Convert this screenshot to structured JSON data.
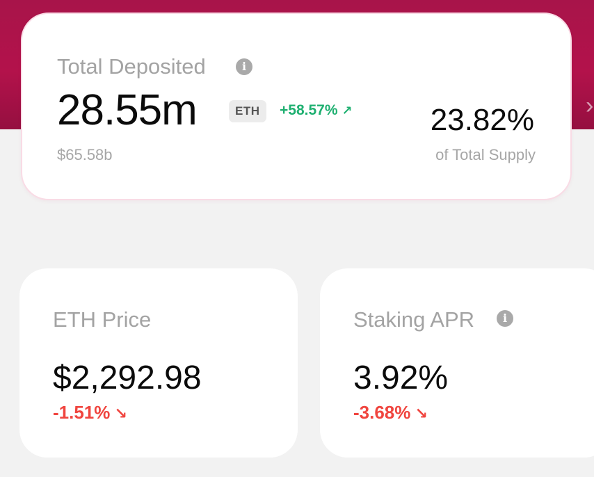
{
  "total_deposited": {
    "label": "Total Deposited",
    "info_icon": "info-icon",
    "value": "28.55m",
    "unit": "ETH",
    "change": "+58.57%",
    "change_arrow": "↗",
    "usd_value": "$65.58b",
    "supply_percent": "23.82%",
    "supply_label": "of Total Supply"
  },
  "eth_price": {
    "label": "ETH Price",
    "value": "$2,292.98",
    "change": "-1.51%",
    "change_arrow": "↘"
  },
  "staking_apr": {
    "label": "Staking APR",
    "info_icon": "info-icon",
    "value": "3.92%",
    "change": "-3.68%",
    "change_arrow": "↘"
  },
  "banner": {
    "arrow_icon": "chevron-right-icon",
    "arrow_glyph": "›"
  },
  "colors": {
    "banner": "#b3124b",
    "positive": "#1fb071",
    "negative": "#f0453f"
  }
}
